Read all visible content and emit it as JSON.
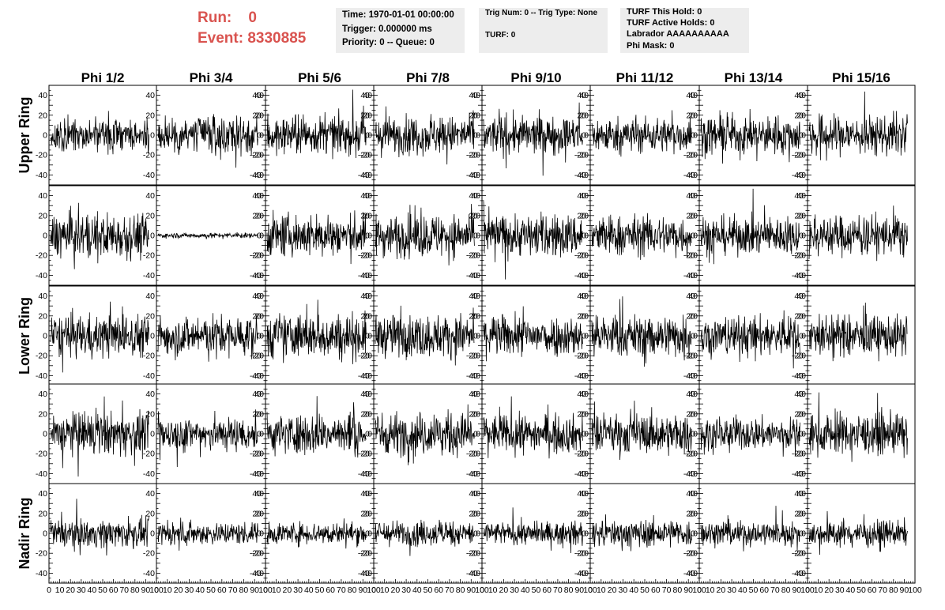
{
  "header": {
    "run_label": "Run:",
    "run_value": "0",
    "event_label": "Event:",
    "event_value": "8330885",
    "event_colour": "#d9534f"
  },
  "info_boxes": [
    {
      "lines": [
        "Time: 1970-01-01 00:00:00",
        "Trigger: 0.000000 ms",
        "Priority: 0 -- Queue: 0"
      ]
    },
    {
      "lines": [
        "Trig Num: 0 -- Trig Type: None",
        "TURF: 0"
      ]
    },
    {
      "lines": [
        "TURF This Hold: 0",
        "TURF Active Holds: 0",
        "Labrador AAAAAAAAAA",
        "Phi Mask: 0"
      ]
    }
  ],
  "chart_data": {
    "type": "line",
    "layout": "grid of small multiples",
    "columns": [
      "Phi 1/2",
      "Phi 3/4",
      "Phi 5/6",
      "Phi 7/8",
      "Phi 9/10",
      "Phi 11/12",
      "Phi 13/14",
      "Phi 15/16"
    ],
    "rows": [
      "Upper Ring",
      "",
      "Lower Ring",
      "",
      "Nadir Ring"
    ],
    "xlim": [
      0,
      100
    ],
    "ylim": [
      -50,
      50
    ],
    "x_ticks": [
      0,
      10,
      20,
      30,
      40,
      50,
      60,
      70,
      80,
      90,
      100
    ],
    "y_ticks": [
      -40,
      -20,
      0,
      20,
      40
    ],
    "grid": false,
    "line_colour": "#000000",
    "series_note": "noise-like waveforms; typical amplitude about ±20, peaks to ±45",
    "series_amplitudes": [
      [
        14,
        16,
        15,
        15,
        15,
        14,
        15,
        16
      ],
      [
        18,
        2,
        17,
        17,
        17,
        16,
        15,
        16
      ],
      [
        17,
        16,
        18,
        17,
        16,
        17,
        16,
        16
      ],
      [
        17,
        14,
        16,
        17,
        15,
        16,
        13,
        16
      ],
      [
        11,
        9,
        9,
        10,
        9,
        11,
        10,
        10
      ]
    ]
  }
}
